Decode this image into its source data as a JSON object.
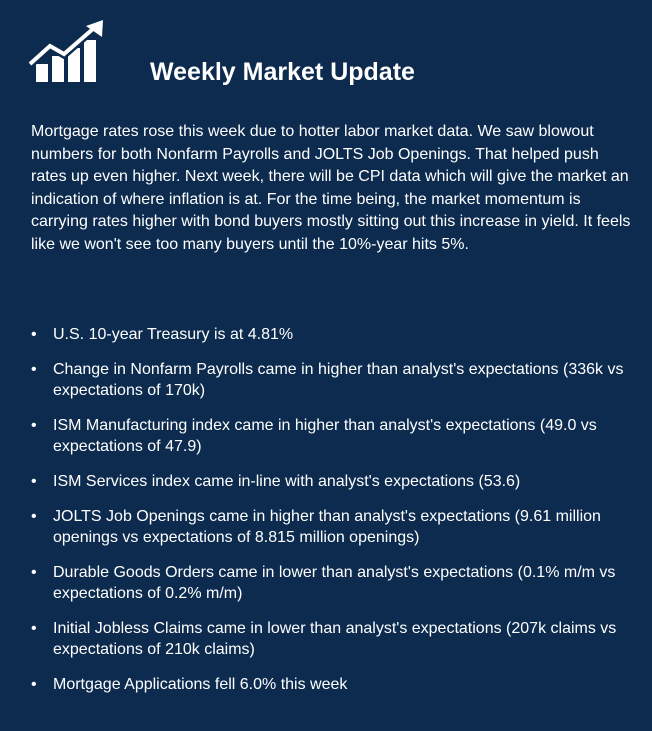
{
  "header": {
    "icon": "rising-chart-icon",
    "title": "Weekly Market Update"
  },
  "intro": "Mortgage rates rose this week due to hotter labor market data. We saw blowout numbers for both Nonfarm Payrolls and JOLTS Job Openings. That helped push rates up even higher. Next week, there will be CPI data which will give the market an indication of where inflation is at. For the time being, the market momentum is carrying rates higher with bond buyers mostly sitting out this increase in yield. It feels like we won't see too many buyers until the 10%-year hits 5%.",
  "bullet_char": "•",
  "bullets": [
    "U.S. 10-year Treasury is at 4.81%",
    "Change in Nonfarm Payrolls came in higher than analyst's expectations (336k vs expectations of 170k)",
    "ISM Manufacturing index came in higher than analyst's expectations (49.0 vs expectations of 47.9)",
    "ISM Services index came in-line with analyst's expectations (53.6)",
    "JOLTS Job Openings came in higher than analyst's expectations (9.61 million openings vs expectations of 8.815 million openings)",
    "Durable Goods Orders came in lower than analyst's expectations (0.1% m/m vs expectations of 0.2% m/m)",
    "Initial Jobless Claims came in lower than analyst's expectations (207k claims vs expectations of 210k claims)",
    "Mortgage Applications fell 6.0% this week"
  ],
  "colors": {
    "background": "#0c2b4e",
    "text": "#ffffff"
  }
}
